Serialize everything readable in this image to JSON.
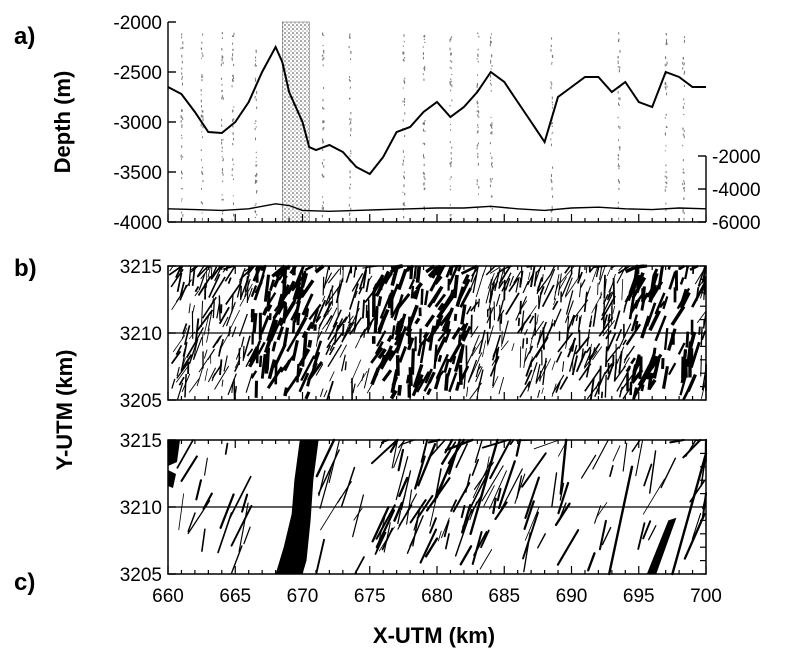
{
  "chart_data": [
    {
      "panel": "a)",
      "type": "line",
      "ylabel": "Depth (m)",
      "xlim": [
        660,
        700
      ],
      "ylim": [
        -4000,
        -2000
      ],
      "yticks": [
        "-2000",
        "-2500",
        "-3000",
        "-3500",
        "-4000"
      ],
      "y2ticks": [
        "-2000",
        "-4000",
        "-6000"
      ],
      "y2lim": [
        -6000,
        -2000
      ],
      "shaded_band_x": [
        668.5,
        670.5
      ],
      "series": [
        {
          "x": [
            660,
            661,
            662,
            663,
            664,
            665,
            666,
            667,
            668,
            668.5,
            669,
            670,
            670.5,
            671,
            672,
            673,
            674,
            675,
            676,
            677,
            678,
            679,
            680,
            681,
            682,
            683,
            684,
            685,
            686,
            687,
            688,
            689,
            690,
            691,
            692,
            693,
            694,
            695,
            696,
            697,
            698,
            699,
            700
          ],
          "y": [
            -2650,
            -2720,
            -2900,
            -3100,
            -3110,
            -3000,
            -2800,
            -2500,
            -2250,
            -2400,
            -2700,
            -3000,
            -3250,
            -3280,
            -3230,
            -3300,
            -3450,
            -3520,
            -3350,
            -3100,
            -3050,
            -2900,
            -2800,
            -2950,
            -2850,
            -2700,
            -2500,
            -2600,
            -2800,
            -3000,
            -3200,
            -2750,
            -2650,
            -2550,
            -2550,
            -2700,
            -2600,
            -2800,
            -2850,
            -2500,
            -2550,
            -2650,
            -2650
          ]
        },
        {
          "axis": "right",
          "x": [
            660,
            662,
            664,
            666,
            668,
            669,
            670,
            672,
            674,
            676,
            678,
            680,
            682,
            684,
            686,
            688,
            690,
            692,
            694,
            696,
            698,
            700
          ],
          "y": [
            -5200,
            -5250,
            -5300,
            -5200,
            -4900,
            -5000,
            -5300,
            -5350,
            -5300,
            -5250,
            -5200,
            -5150,
            -5150,
            -5050,
            -5200,
            -5300,
            -5150,
            -5100,
            -5200,
            -5250,
            -5150,
            -5200
          ]
        }
      ]
    },
    {
      "panel": "b)",
      "type": "heatmap",
      "xlim": [
        660,
        700
      ],
      "ylim": [
        3205,
        3215
      ],
      "yticks": [
        "3205",
        "3210",
        "3215"
      ],
      "profile_line_y": 3210
    },
    {
      "panel": "c)",
      "type": "heatmap",
      "xlim": [
        660,
        700
      ],
      "ylim": [
        3205,
        3215
      ],
      "yticks": [
        "3205",
        "3210",
        "3215"
      ],
      "xticks": [
        "660",
        "665",
        "670",
        "675",
        "680",
        "685",
        "690",
        "695",
        "700"
      ],
      "xlabel": "X-UTM (km)",
      "ylabel": "Y-UTM (km)",
      "profile_line_y": 3210
    }
  ]
}
